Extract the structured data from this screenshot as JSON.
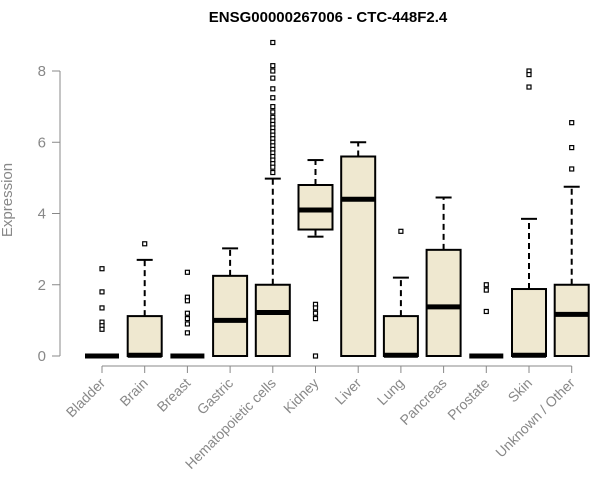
{
  "chart_data": {
    "type": "box",
    "title": "ENSG00000267006 - CTC-448F2.4",
    "xlabel": "",
    "ylabel": "Expression",
    "ylim": [
      0,
      9
    ],
    "yticks": [
      0,
      2,
      4,
      6,
      8
    ],
    "grid": false,
    "legend": "none",
    "box_fill": "#efe8d0",
    "box_stroke": "#000000",
    "categories": [
      "Bladder",
      "Brain",
      "Breast",
      "Gastric",
      "Hematopoietic cells",
      "Kidney",
      "Liver",
      "Lung",
      "Pancreas",
      "Prostate",
      "Skin",
      "Unknown / Other"
    ],
    "boxes": [
      {
        "min": 0,
        "q1": 0,
        "median": 0,
        "q3": 0,
        "max": 0,
        "outliers": [
          2.45,
          1.8,
          1.35,
          0.95,
          0.85,
          0.75
        ]
      },
      {
        "min": 0,
        "q1": 0,
        "median": 0.02,
        "q3": 1.12,
        "max": 2.7,
        "outliers": [
          3.15
        ]
      },
      {
        "min": 0,
        "q1": 0,
        "median": 0,
        "q3": 0,
        "max": 0,
        "outliers": [
          2.35,
          1.65,
          1.55,
          1.2,
          1.05,
          0.9,
          0.65
        ]
      },
      {
        "min": 0,
        "q1": 0,
        "median": 1.0,
        "q3": 2.25,
        "max": 3.02,
        "outliers": []
      },
      {
        "min": 0,
        "q1": 0,
        "median": 1.22,
        "q3": 2.0,
        "max": 4.98,
        "outliers": [
          8.8,
          8.15,
          8.0,
          7.8,
          7.5,
          7.25,
          7.0,
          6.85,
          6.7,
          6.6,
          6.5,
          6.4,
          6.3,
          6.2,
          6.1,
          6.0,
          5.9,
          5.8,
          5.7,
          5.6,
          5.5,
          5.4,
          5.3,
          5.15
        ]
      },
      {
        "min": 3.35,
        "q1": 3.55,
        "median": 4.1,
        "q3": 4.8,
        "max": 5.5,
        "outliers": [
          1.45,
          1.35,
          1.2,
          1.05,
          0.0
        ]
      },
      {
        "min": 0,
        "q1": 0,
        "median": 4.4,
        "q3": 5.6,
        "max": 6.0,
        "outliers": []
      },
      {
        "min": 0,
        "q1": 0,
        "median": 0.02,
        "q3": 1.12,
        "max": 2.2,
        "outliers": [
          3.5
        ]
      },
      {
        "min": 0,
        "q1": 0,
        "median": 1.38,
        "q3": 2.98,
        "max": 4.45,
        "outliers": []
      },
      {
        "min": 0,
        "q1": 0,
        "median": 0,
        "q3": 0,
        "max": 0,
        "outliers": [
          2.0,
          1.85,
          1.25
        ]
      },
      {
        "min": 0,
        "q1": 0,
        "median": 0.02,
        "q3": 1.88,
        "max": 3.85,
        "outliers": [
          8.0,
          7.9,
          7.55
        ]
      },
      {
        "min": 0,
        "q1": 0,
        "median": 1.17,
        "q3": 2.0,
        "max": 4.75,
        "outliers": [
          6.55,
          5.85,
          5.25
        ]
      }
    ]
  }
}
